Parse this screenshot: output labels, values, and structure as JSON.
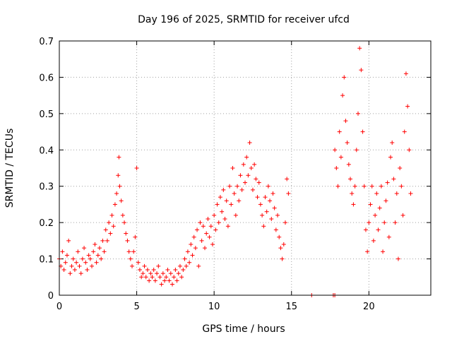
{
  "chart_data": {
    "type": "scatter",
    "title": "Day 196 of 2025, SRMTID for receiver ufcd",
    "xlabel": "GPS time / hours",
    "ylabel": "SRMTID / TECUs",
    "xlim": [
      0,
      24
    ],
    "ylim": [
      0,
      0.7
    ],
    "xticks": [
      0,
      5,
      10,
      15,
      20
    ],
    "yticks": [
      0,
      0.1,
      0.2,
      0.3,
      0.4,
      0.5,
      0.6,
      0.7
    ],
    "xtick_labels": [
      "0",
      "5",
      "10",
      "15",
      "20"
    ],
    "ytick_labels": [
      "0",
      "0.1",
      "0.2",
      "0.3",
      "0.4",
      "0.5",
      "0.6",
      "0.7"
    ],
    "grid": true,
    "marker": "plus",
    "marker_color": "#ff0000",
    "series": [
      {
        "name": "SRMTID",
        "points": [
          [
            0.0,
            0.1
          ],
          [
            0.1,
            0.08
          ],
          [
            0.2,
            0.12
          ],
          [
            0.3,
            0.07
          ],
          [
            0.4,
            0.09
          ],
          [
            0.5,
            0.11
          ],
          [
            0.6,
            0.15
          ],
          [
            0.7,
            0.06
          ],
          [
            0.8,
            0.08
          ],
          [
            0.9,
            0.1
          ],
          [
            1.0,
            0.07
          ],
          [
            1.1,
            0.09
          ],
          [
            1.2,
            0.12
          ],
          [
            1.3,
            0.08
          ],
          [
            1.4,
            0.06
          ],
          [
            1.5,
            0.1
          ],
          [
            1.6,
            0.13
          ],
          [
            1.7,
            0.09
          ],
          [
            1.8,
            0.07
          ],
          [
            1.9,
            0.11
          ],
          [
            2.0,
            0.1
          ],
          [
            2.1,
            0.08
          ],
          [
            2.2,
            0.12
          ],
          [
            2.3,
            0.14
          ],
          [
            2.4,
            0.09
          ],
          [
            2.5,
            0.11
          ],
          [
            2.6,
            0.13
          ],
          [
            2.7,
            0.1
          ],
          [
            2.8,
            0.15
          ],
          [
            2.9,
            0.12
          ],
          [
            3.0,
            0.18
          ],
          [
            3.1,
            0.15
          ],
          [
            3.2,
            0.2
          ],
          [
            3.3,
            0.17
          ],
          [
            3.4,
            0.22
          ],
          [
            3.5,
            0.19
          ],
          [
            3.6,
            0.25
          ],
          [
            3.7,
            0.28
          ],
          [
            3.8,
            0.33
          ],
          [
            3.85,
            0.38
          ],
          [
            3.9,
            0.3
          ],
          [
            4.0,
            0.26
          ],
          [
            4.1,
            0.22
          ],
          [
            4.2,
            0.2
          ],
          [
            4.3,
            0.17
          ],
          [
            4.4,
            0.15
          ],
          [
            4.5,
            0.12
          ],
          [
            4.6,
            0.1
          ],
          [
            4.7,
            0.08
          ],
          [
            4.8,
            0.12
          ],
          [
            4.9,
            0.16
          ],
          [
            5.0,
            0.35
          ],
          [
            5.1,
            0.09
          ],
          [
            5.2,
            0.07
          ],
          [
            5.3,
            0.05
          ],
          [
            5.4,
            0.06
          ],
          [
            5.5,
            0.08
          ],
          [
            5.6,
            0.05
          ],
          [
            5.7,
            0.07
          ],
          [
            5.8,
            0.04
          ],
          [
            5.9,
            0.06
          ],
          [
            6.0,
            0.05
          ],
          [
            6.1,
            0.07
          ],
          [
            6.2,
            0.04
          ],
          [
            6.3,
            0.06
          ],
          [
            6.4,
            0.08
          ],
          [
            6.5,
            0.05
          ],
          [
            6.6,
            0.03
          ],
          [
            6.7,
            0.06
          ],
          [
            6.8,
            0.04
          ],
          [
            6.9,
            0.05
          ],
          [
            7.0,
            0.07
          ],
          [
            7.1,
            0.04
          ],
          [
            7.2,
            0.06
          ],
          [
            7.3,
            0.03
          ],
          [
            7.4,
            0.05
          ],
          [
            7.5,
            0.07
          ],
          [
            7.6,
            0.04
          ],
          [
            7.7,
            0.06
          ],
          [
            7.8,
            0.08
          ],
          [
            7.9,
            0.05
          ],
          [
            8.0,
            0.07
          ],
          [
            8.1,
            0.1
          ],
          [
            8.2,
            0.08
          ],
          [
            8.3,
            0.12
          ],
          [
            8.4,
            0.09
          ],
          [
            8.5,
            0.14
          ],
          [
            8.6,
            0.11
          ],
          [
            8.7,
            0.16
          ],
          [
            8.8,
            0.13
          ],
          [
            8.9,
            0.18
          ],
          [
            9.0,
            0.08
          ],
          [
            9.1,
            0.2
          ],
          [
            9.2,
            0.15
          ],
          [
            9.3,
            0.19
          ],
          [
            9.4,
            0.13
          ],
          [
            9.5,
            0.17
          ],
          [
            9.6,
            0.21
          ],
          [
            9.7,
            0.16
          ],
          [
            9.8,
            0.19
          ],
          [
            9.9,
            0.14
          ],
          [
            10.0,
            0.22
          ],
          [
            10.1,
            0.18
          ],
          [
            10.2,
            0.25
          ],
          [
            10.3,
            0.2
          ],
          [
            10.4,
            0.27
          ],
          [
            10.5,
            0.23
          ],
          [
            10.6,
            0.29
          ],
          [
            10.7,
            0.21
          ],
          [
            10.8,
            0.26
          ],
          [
            10.9,
            0.19
          ],
          [
            11.0,
            0.3
          ],
          [
            11.1,
            0.25
          ],
          [
            11.2,
            0.35
          ],
          [
            11.3,
            0.28
          ],
          [
            11.4,
            0.22
          ],
          [
            11.5,
            0.3
          ],
          [
            11.6,
            0.26
          ],
          [
            11.7,
            0.33
          ],
          [
            11.8,
            0.29
          ],
          [
            11.9,
            0.36
          ],
          [
            12.0,
            0.31
          ],
          [
            12.1,
            0.38
          ],
          [
            12.2,
            0.33
          ],
          [
            12.3,
            0.42
          ],
          [
            12.4,
            0.35
          ],
          [
            12.5,
            0.29
          ],
          [
            12.6,
            0.36
          ],
          [
            12.7,
            0.32
          ],
          [
            12.8,
            0.27
          ],
          [
            12.9,
            0.31
          ],
          [
            13.0,
            0.25
          ],
          [
            13.1,
            0.22
          ],
          [
            13.2,
            0.19
          ],
          [
            13.3,
            0.27
          ],
          [
            13.4,
            0.23
          ],
          [
            13.5,
            0.3
          ],
          [
            13.6,
            0.26
          ],
          [
            13.7,
            0.21
          ],
          [
            13.8,
            0.28
          ],
          [
            13.9,
            0.24
          ],
          [
            14.0,
            0.18
          ],
          [
            14.1,
            0.22
          ],
          [
            14.2,
            0.16
          ],
          [
            14.3,
            0.13
          ],
          [
            14.4,
            0.1
          ],
          [
            14.5,
            0.14
          ],
          [
            14.6,
            0.2
          ],
          [
            14.7,
            0.32
          ],
          [
            14.8,
            0.28
          ],
          [
            16.3,
            0.0
          ],
          [
            17.7,
            0.0
          ],
          [
            17.8,
            0.0
          ],
          [
            17.8,
            0.4
          ],
          [
            17.9,
            0.35
          ],
          [
            18.0,
            0.3
          ],
          [
            18.1,
            0.45
          ],
          [
            18.2,
            0.38
          ],
          [
            18.3,
            0.55
          ],
          [
            18.4,
            0.6
          ],
          [
            18.5,
            0.48
          ],
          [
            18.6,
            0.42
          ],
          [
            18.7,
            0.36
          ],
          [
            18.8,
            0.32
          ],
          [
            18.9,
            0.28
          ],
          [
            19.0,
            0.25
          ],
          [
            19.1,
            0.3
          ],
          [
            19.2,
            0.4
          ],
          [
            19.3,
            0.5
          ],
          [
            19.4,
            0.68
          ],
          [
            19.5,
            0.62
          ],
          [
            19.6,
            0.45
          ],
          [
            19.7,
            0.3
          ],
          [
            19.8,
            0.18
          ],
          [
            19.9,
            0.12
          ],
          [
            20.0,
            0.2
          ],
          [
            20.1,
            0.25
          ],
          [
            20.2,
            0.3
          ],
          [
            20.3,
            0.15
          ],
          [
            20.4,
            0.22
          ],
          [
            20.5,
            0.28
          ],
          [
            20.6,
            0.18
          ],
          [
            20.7,
            0.24
          ],
          [
            20.8,
            0.3
          ],
          [
            20.9,
            0.12
          ],
          [
            21.0,
            0.2
          ],
          [
            21.1,
            0.26
          ],
          [
            21.2,
            0.31
          ],
          [
            21.3,
            0.16
          ],
          [
            21.4,
            0.38
          ],
          [
            21.5,
            0.42
          ],
          [
            21.6,
            0.32
          ],
          [
            21.7,
            0.2
          ],
          [
            21.8,
            0.28
          ],
          [
            21.9,
            0.1
          ],
          [
            22.0,
            0.35
          ],
          [
            22.1,
            0.3
          ],
          [
            22.2,
            0.22
          ],
          [
            22.3,
            0.45
          ],
          [
            22.4,
            0.61
          ],
          [
            22.5,
            0.52
          ],
          [
            22.6,
            0.4
          ],
          [
            22.7,
            0.28
          ]
        ]
      }
    ]
  }
}
